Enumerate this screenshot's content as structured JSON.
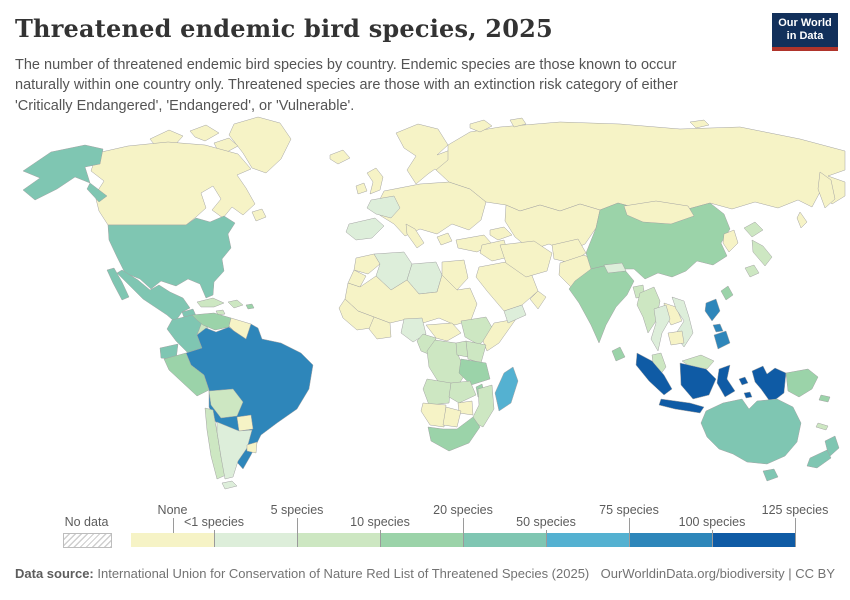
{
  "header": {
    "title": "Threatened endemic bird species, 2025",
    "subtitle": "The number of threatened endemic bird species by country. Endemic species are those known to occur naturally within one country only. Threatened species are those with an extinction risk category of either 'Critically Endangered', 'Endangered', or 'Vulnerable'.",
    "logo": {
      "line1": "Our World",
      "line2": "in Data",
      "bg": "#12305b",
      "accent": "#b0342b"
    }
  },
  "legend": {
    "no_data_label": "No data",
    "ticks": [
      {
        "label": "None",
        "pos": 6.25,
        "row": "center"
      },
      {
        "label": "<1 species",
        "pos": 12.5,
        "row": "bottom"
      },
      {
        "label": "5 species",
        "pos": 25,
        "row": "top"
      },
      {
        "label": "10 species",
        "pos": 37.5,
        "row": "bottom"
      },
      {
        "label": "20 species",
        "pos": 50,
        "row": "top"
      },
      {
        "label": "50 species",
        "pos": 62.5,
        "row": "bottom"
      },
      {
        "label": "75 species",
        "pos": 75,
        "row": "top"
      },
      {
        "label": "100 species",
        "pos": 87.5,
        "row": "bottom"
      },
      {
        "label": "125 species",
        "pos": 100,
        "row": "top"
      }
    ]
  },
  "footer": {
    "source_label": "Data source:",
    "source_text": "International Union for Conservation of Nature Red List of Threatened Species (2025)",
    "right_text": "OurWorldinData.org/biodiversity | CC BY"
  },
  "chart_data": {
    "type": "heatmap",
    "subtype": "choropleth-world-map",
    "title": "Threatened endemic bird species, 2025",
    "unit": "species",
    "legend_position": "bottom",
    "no_data_color": "hatched",
    "border_color": "#a3a3a3",
    "bin_labels": [
      "None",
      "<1–5",
      "5–10",
      "10–20",
      "20–50",
      "50–75",
      "75–100",
      "100–125"
    ],
    "bin_colors": [
      "#f6f3c6",
      "#ddeeda",
      "#cde7c2",
      "#9bd3a9",
      "#7fc6b2",
      "#54b1d1",
      "#2e86ba",
      "#0f5ba5"
    ],
    "boundary_labels": [
      "None",
      "<1 species",
      "5 species",
      "10 species",
      "20 species",
      "50 species",
      "75 species",
      "100 species",
      "125 species"
    ],
    "countries": {
      "greenland": 1,
      "canada": 1,
      "alaska": 5,
      "usa": 5,
      "mexico": 5,
      "guatemala-honduras-nicaragua": 3,
      "costa-rica-panama": 4,
      "cuba": 3,
      "jamaica": 3,
      "hispaniola": 3,
      "puerto-rico": 4,
      "colombia": 5,
      "venezuela": 4,
      "guyanas": 1,
      "ecuador": 5,
      "peru": 4,
      "brazil": 7,
      "bolivia": 3,
      "paraguay": 1,
      "chile": 3,
      "argentina": 2,
      "uruguay": 1,
      "iceland": 1,
      "uk": 1,
      "ireland": 1,
      "scandinavia": 1,
      "europe": 1,
      "france": 2,
      "iberia": 2,
      "italy": 1,
      "greece": 1,
      "morocco": 1,
      "western-sahara": 1,
      "algeria": 2,
      "libya": 2,
      "egypt": 1,
      "sahel": 1,
      "west-africa": 1,
      "ghana-ivory-coast": 1,
      "nigeria": 2,
      "cameroon": 3,
      "congo": 2,
      "central-african-republic": 1,
      "ethiopia": 3,
      "somalia": 1,
      "uganda": 3,
      "kenya": 3,
      "drc": 3,
      "tanzania": 4,
      "angola": 3,
      "zambia": 3,
      "malawi": 4,
      "mozambique": 3,
      "zimbabwe": 1,
      "namibia": 1,
      "botswana": 1,
      "south-africa": 4,
      "madagascar": 6,
      "russia": 1,
      "caucasus": 1,
      "turkey": 1,
      "central-asia": 1,
      "middle-east": 1,
      "saudi-arabia": 1,
      "yemen": 2,
      "oman": 1,
      "iran": 1,
      "afghanistan": 1,
      "pakistan": 1,
      "india": 4,
      "sri-lanka": 4,
      "nepal": 2,
      "bangladesh": 3,
      "china": 4,
      "mongolia": 1,
      "korea": 1,
      "japan": 3,
      "taiwan": 4,
      "myanmar": 3,
      "thailand": 2,
      "laos": 1,
      "vietnam": 2,
      "cambodia": 1,
      "malaysia": 3,
      "philippines": 7,
      "indonesia": 8,
      "papua-new-guinea": 4,
      "solomon-islands": 4,
      "new-caledonia": 3,
      "australia": 5,
      "new-zealand": 5
    }
  }
}
